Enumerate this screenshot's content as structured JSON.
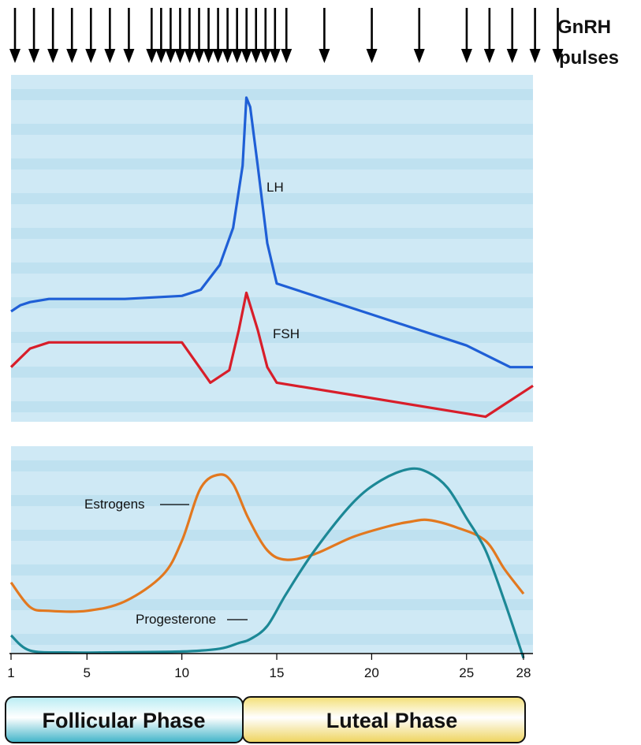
{
  "gnrh": {
    "label_line1": "GnRH",
    "label_line2": "pulses",
    "pulse_days": [
      1,
      2,
      3,
      4,
      5,
      6,
      7,
      8.2,
      8.7,
      9.2,
      9.7,
      10.2,
      10.7,
      11.2,
      11.7,
      12.2,
      12.7,
      13.2,
      13.7,
      14.2,
      14.7,
      15.3,
      17.3,
      19.8,
      22.3,
      24.8,
      26,
      27.2,
      28.4,
      29.6
    ]
  },
  "phases": {
    "follicular_label": "Follicular Phase",
    "luteal_label": "Luteal Phase",
    "follicular_color": "#54bfd0",
    "luteal_color": "#f3dc6c"
  },
  "chart_data": [
    {
      "type": "line",
      "title": "",
      "xlabel": "",
      "ylabel": "",
      "xlim": [
        1,
        28.5
      ],
      "ylim": [
        0,
        100
      ],
      "y_ticks_shown": false,
      "series": [
        {
          "name": "LH",
          "color": "#1f5fd6",
          "x": [
            1,
            1.5,
            2,
            3,
            5,
            7,
            10,
            11,
            12,
            12.7,
            13.2,
            13.4,
            13.6,
            14,
            14.5,
            15,
            20,
            25,
            27.3,
            28.5
          ],
          "y": [
            28,
            30,
            31,
            32,
            32,
            32,
            33,
            35,
            43,
            55,
            75,
            97,
            94,
            75,
            50,
            37,
            27,
            17,
            10,
            10
          ]
        },
        {
          "name": "FSH",
          "color": "#d81e2a",
          "x": [
            1,
            1.5,
            2,
            3,
            5,
            7,
            10,
            11.5,
            12.5,
            13,
            13.4,
            14,
            14.5,
            15,
            20,
            26,
            28.5
          ],
          "y": [
            10,
            13,
            16,
            18,
            18,
            18,
            18,
            5,
            9,
            22,
            34,
            22,
            10,
            5,
            0,
            -6,
            4
          ]
        }
      ],
      "annotations": [
        "LH",
        "FSH"
      ]
    },
    {
      "type": "line",
      "title": "",
      "xlabel": "",
      "ylabel": "",
      "xlim": [
        1,
        28.5
      ],
      "ylim": [
        0,
        100
      ],
      "y_ticks_shown": false,
      "x_ticks": [
        1,
        5,
        10,
        15,
        20,
        25,
        28
      ],
      "series": [
        {
          "name": "Estrogens",
          "color": "#e2781f",
          "x": [
            1,
            2,
            3,
            5,
            7,
            9,
            10,
            11,
            12,
            12.7,
            13.5,
            14.5,
            15.5,
            17,
            19,
            21,
            22,
            23,
            24.5,
            26,
            27,
            28
          ],
          "y": [
            38,
            25,
            23,
            23,
            28,
            42,
            60,
            88,
            95,
            90,
            72,
            55,
            50,
            53,
            62,
            68,
            70,
            71,
            67,
            60,
            45,
            32
          ]
        },
        {
          "name": "Progesterone",
          "color": "#1c8896",
          "x": [
            1,
            2,
            4,
            6,
            10,
            12,
            13,
            13.6,
            14.5,
            15.5,
            17,
            19,
            20.5,
            22,
            23,
            24,
            25,
            26,
            27,
            28
          ],
          "y": [
            10,
            2,
            1,
            1,
            1.5,
            3,
            6,
            8,
            15,
            32,
            55,
            80,
            92,
            98,
            96,
            88,
            72,
            55,
            28,
            -2
          ]
        }
      ],
      "annotations": [
        "Estrogens",
        "Progesterone"
      ]
    }
  ]
}
